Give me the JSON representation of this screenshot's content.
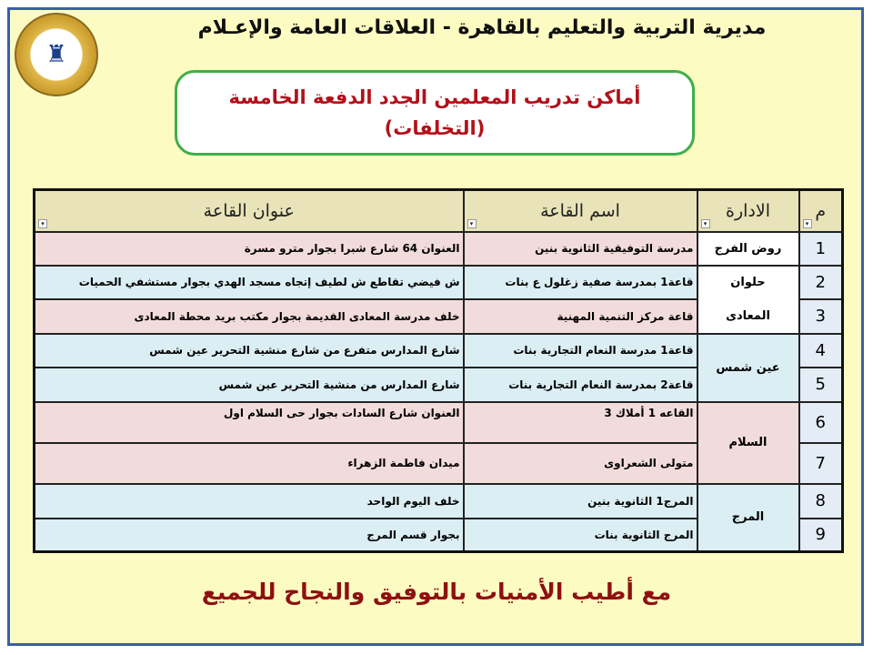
{
  "header": {
    "title": "مديرية التربية والتعليم بالقاهرة - العلاقات العامة والإعـلام",
    "logo": "logo-emblem"
  },
  "box": {
    "line1": "أماكن تدريب المعلمين الجدد الدفعة الخامسة",
    "line2": "(التخلفات)"
  },
  "table": {
    "headers": {
      "num": "م",
      "admin": "الادارة",
      "hall": "اسم القاعة",
      "address": "عنوان القاعة"
    },
    "rows": [
      {
        "num": "1",
        "admin": "روض الفرج",
        "hall": "مدرسة التوفيقية الثانوية بنين",
        "address": "العنوان 64 شارع شبرا بجوار مترو مسرة"
      },
      {
        "num": "2",
        "admin": "حلوان",
        "hall": "قاعة1 بمدرسة صفية زغلول ع بنات",
        "address": "ش فيضي تقاطع ش لطيف إتجاه  مسجد الهدي بجوار مستشفي الحميات"
      },
      {
        "num": "3",
        "admin": "المعادى",
        "hall": "قاعة مركز التنمية المهنية",
        "address": "خلف مدرسة المعادى القديمة بجوار مكتب بريد محطة المعادى"
      },
      {
        "num": "4",
        "admin": "عين شمس",
        "hall": "قاعة1 مدرسة النعام التجارية بنات",
        "address": "شارع المدارس متفرع من شارع منشية التحرير عين شمس"
      },
      {
        "num": "5",
        "admin": "",
        "hall": "قاعة2 بمدرسة النعام التجارية بنات",
        "address": "شارع المدارس من منشية التحرير عين شمس"
      },
      {
        "num": "6",
        "admin": "السلام",
        "hall": "القاعه 1 أملاك 3",
        "address": "العنوان شارع السادات بجوار حى السلام اول"
      },
      {
        "num": "7",
        "admin": "",
        "hall": "متولى الشعراوى",
        "address": "ميدان فاطمة  الزهراء"
      },
      {
        "num": "8",
        "admin": "المرج",
        "hall": "المرج1 الثانوية بنين",
        "address": "خلف اليوم الواحد"
      },
      {
        "num": "9",
        "admin": "",
        "hall": "المرج الثانوية بنات",
        "address": "بجوار قسم المرج"
      }
    ]
  },
  "footer": "مع أطيب الأمنيات بالتوفيق والنجاح للجميع"
}
